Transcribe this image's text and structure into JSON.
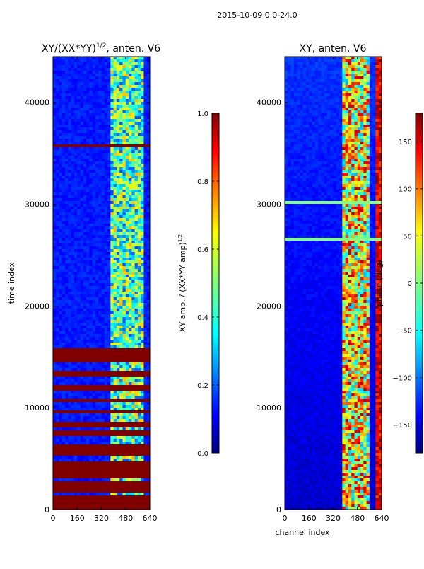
{
  "figure_title": "2015-10-09 0.0-24.0",
  "colormap": {
    "name": "jet",
    "stops": [
      "#00007f",
      "#0000ff",
      "#007fff",
      "#00ffff",
      "#7fff7f",
      "#ffff00",
      "#ff7f00",
      "#ff0000",
      "#7f0000"
    ]
  },
  "chart_data": [
    {
      "type": "heatmap",
      "title_main": "XY/(XX*YY)",
      "title_sup": "1/2",
      "title_rest": ", anten. V6",
      "xlabel": "",
      "ylabel": "time index",
      "xlim": [
        0,
        640
      ],
      "ylim": [
        0,
        44500
      ],
      "xticks": [
        0,
        160,
        320,
        480,
        640
      ],
      "yticks": [
        0,
        10000,
        20000,
        30000,
        40000
      ],
      "colorbar": {
        "label_main": "XY amp. / (XX*YY amp)",
        "label_sup": "1/2",
        "range": [
          0.0,
          1.0
        ],
        "ticks": [
          "0.0",
          "0.2",
          "0.4",
          "0.6",
          "0.8",
          "1.0"
        ],
        "tick_values": [
          0.0,
          0.2,
          0.4,
          0.6,
          0.8,
          1.0
        ]
      },
      "background_value": 0.15,
      "structure": {
        "high_channel_band": [
          380,
          600
        ],
        "saturated_time_ranges": [
          [
            0,
            1500
          ],
          [
            1800,
            2700
          ],
          [
            3000,
            4800
          ],
          [
            5200,
            6500
          ],
          [
            7200,
            7700
          ],
          [
            8200,
            8600
          ],
          [
            9400,
            9800
          ],
          [
            10500,
            10900
          ],
          [
            11800,
            12200
          ],
          [
            13200,
            13600
          ],
          [
            14600,
            15800
          ],
          [
            35600,
            36000
          ]
        ]
      }
    },
    {
      "type": "heatmap",
      "title_main": "XY, anten. V6",
      "xlabel": "channel index",
      "ylabel": "",
      "xlim": [
        0,
        640
      ],
      "ylim": [
        0,
        44500
      ],
      "xticks": [
        0,
        160,
        320,
        480,
        640
      ],
      "yticks": [
        0,
        10000,
        20000,
        30000,
        40000
      ],
      "colorbar": {
        "label_main": "phase (deg)",
        "range": [
          -180,
          180
        ],
        "ticks": [
          "−150",
          "−100",
          "−50",
          "0",
          "50",
          "100",
          "150"
        ],
        "tick_values": [
          -150,
          -100,
          -50,
          0,
          50,
          100,
          150
        ]
      },
      "background_value": -160,
      "structure": {
        "phase_band_channels": [
          380,
          560
        ],
        "bright_rows": [
          26500,
          30200
        ]
      }
    }
  ]
}
